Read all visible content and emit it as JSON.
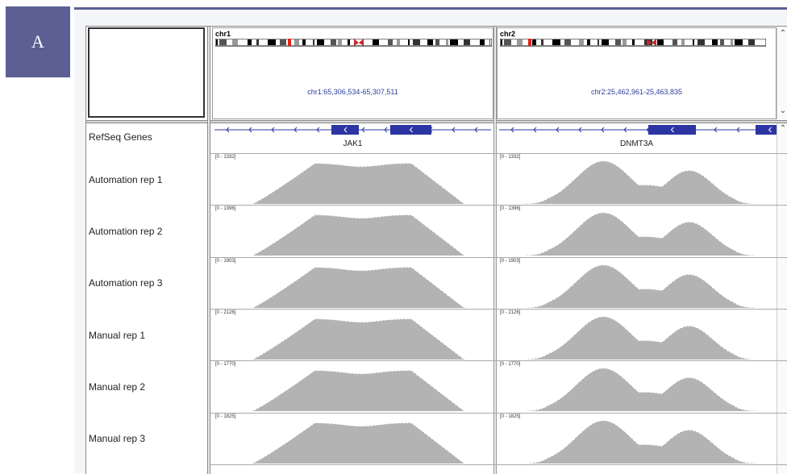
{
  "panel_label": "A",
  "loci": [
    {
      "chr": "chr1",
      "range": "chr1:65,306,534-65,307,511",
      "gene": "JAK1"
    },
    {
      "chr": "chr2",
      "range": "chr2:25,462,961-25,463,835",
      "gene": "DNMT3A"
    }
  ],
  "gene_track_name": "RefSeq Genes",
  "tracks": [
    {
      "name": "Automation rep 1",
      "ranges": [
        "[0 - 1332]",
        "[0 - 1332]"
      ]
    },
    {
      "name": "Automation rep 2",
      "ranges": [
        "[0 - 1396]",
        "[0 - 1396]"
      ]
    },
    {
      "name": "Automation rep 3",
      "ranges": [
        "[0 - 1903]",
        "[0 - 1903]"
      ]
    },
    {
      "name": "Manual rep 1",
      "ranges": [
        "[0 - 2126]",
        "[0 - 2126]"
      ]
    },
    {
      "name": "Manual rep 2",
      "ranges": [
        "[0 - 1770]",
        "[0 - 1770]"
      ]
    },
    {
      "name": "Manual rep 3",
      "ranges": [
        "[0 - 1825]",
        "[0 - 1825]"
      ]
    }
  ],
  "colors": {
    "coverage": "#b3b3b3",
    "gene": "#2b35a3",
    "accent": "#5b5f93",
    "locus_text": "#2c3e9c"
  },
  "icons": {
    "scroll_up": "chevron-up-icon",
    "scroll_down": "chevron-down-icon"
  }
}
